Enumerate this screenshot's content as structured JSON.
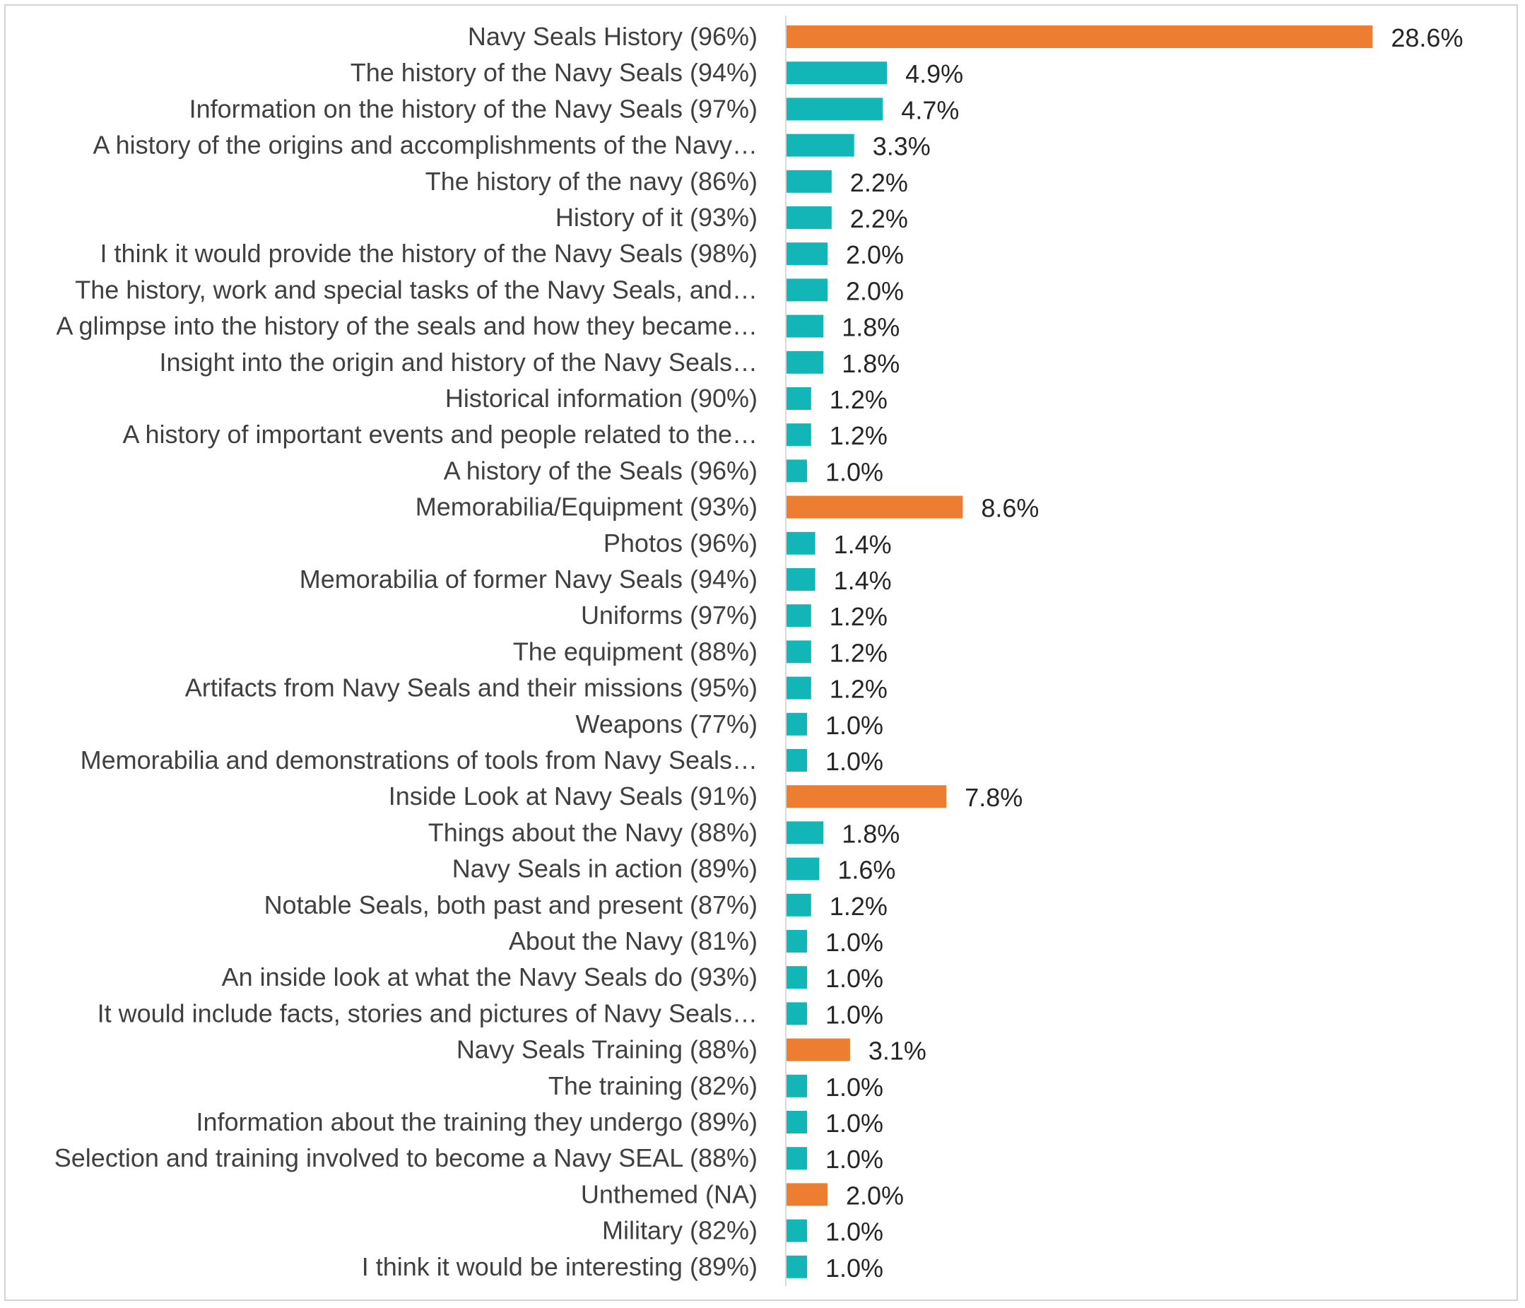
{
  "chart_data": {
    "type": "bar",
    "orientation": "horizontal",
    "title": "",
    "xlabel": "",
    "ylabel": "",
    "xlim": [
      0,
      30
    ],
    "grid": false,
    "legend": "none",
    "colors": {
      "theme": "#ED7D31",
      "item": "#13B6B6",
      "axis": "#d9d9d9",
      "frame": "#d4d4d4"
    },
    "categories": [
      "Navy Seals History (96%)",
      "The history of the Navy Seals (94%)",
      "Information on the history of the Navy Seals (97%)",
      "A history of the origins and accomplishments of the Navy…",
      "The history of the navy (86%)",
      "History of it (93%)",
      "I think it would provide the history of the Navy Seals (98%)",
      "The history, work and special tasks of the Navy Seals, and…",
      "A glimpse into the history of the seals and how they became…",
      "Insight into the origin and history of the Navy Seals…",
      "Historical information (90%)",
      "A history of important events and people related to the…",
      "A history of the Seals (96%)",
      "Memorabilia/Equipment (93%)",
      "Photos (96%)",
      "Memorabilia of former Navy Seals (94%)",
      "Uniforms (97%)",
      "The equipment (88%)",
      "Artifacts from Navy Seals and their missions (95%)",
      "Weapons (77%)",
      "Memorabilia and demonstrations of tools from Navy Seals…",
      "Inside Look at Navy Seals (91%)",
      "Things about the Navy (88%)",
      "Navy Seals in action (89%)",
      "Notable Seals, both past and present (87%)",
      "About the Navy (81%)",
      "An inside look at what the Navy Seals do (93%)",
      "It would include facts, stories and pictures of Navy Seals…",
      "Navy Seals Training (88%)",
      "The training (82%)",
      "Information about the training they undergo (89%)",
      "Selection and training involved to become a Navy SEAL (88%)",
      "Unthemed (NA)",
      "Military (82%)",
      "I think it would be interesting (89%)"
    ],
    "values": [
      28.6,
      4.9,
      4.7,
      3.3,
      2.2,
      2.2,
      2.0,
      2.0,
      1.8,
      1.8,
      1.2,
      1.2,
      1.0,
      8.6,
      1.4,
      1.4,
      1.2,
      1.2,
      1.2,
      1.0,
      1.0,
      7.8,
      1.8,
      1.6,
      1.2,
      1.0,
      1.0,
      1.0,
      3.1,
      1.0,
      1.0,
      1.0,
      2.0,
      1.0,
      1.0
    ],
    "value_labels": [
      "28.6%",
      "4.9%",
      "4.7%",
      "3.3%",
      "2.2%",
      "2.2%",
      "2.0%",
      "2.0%",
      "1.8%",
      "1.8%",
      "1.2%",
      "1.2%",
      "1.0%",
      "8.6%",
      "1.4%",
      "1.4%",
      "1.2%",
      "1.2%",
      "1.2%",
      "1.0%",
      "1.0%",
      "7.8%",
      "1.8%",
      "1.6%",
      "1.2%",
      "1.0%",
      "1.0%",
      "1.0%",
      "3.1%",
      "1.0%",
      "1.0%",
      "1.0%",
      "2.0%",
      "1.0%",
      "1.0%"
    ],
    "is_theme": [
      true,
      false,
      false,
      false,
      false,
      false,
      false,
      false,
      false,
      false,
      false,
      false,
      false,
      true,
      false,
      false,
      false,
      false,
      false,
      false,
      false,
      true,
      false,
      false,
      false,
      false,
      false,
      false,
      true,
      false,
      false,
      false,
      true,
      false,
      false
    ]
  }
}
